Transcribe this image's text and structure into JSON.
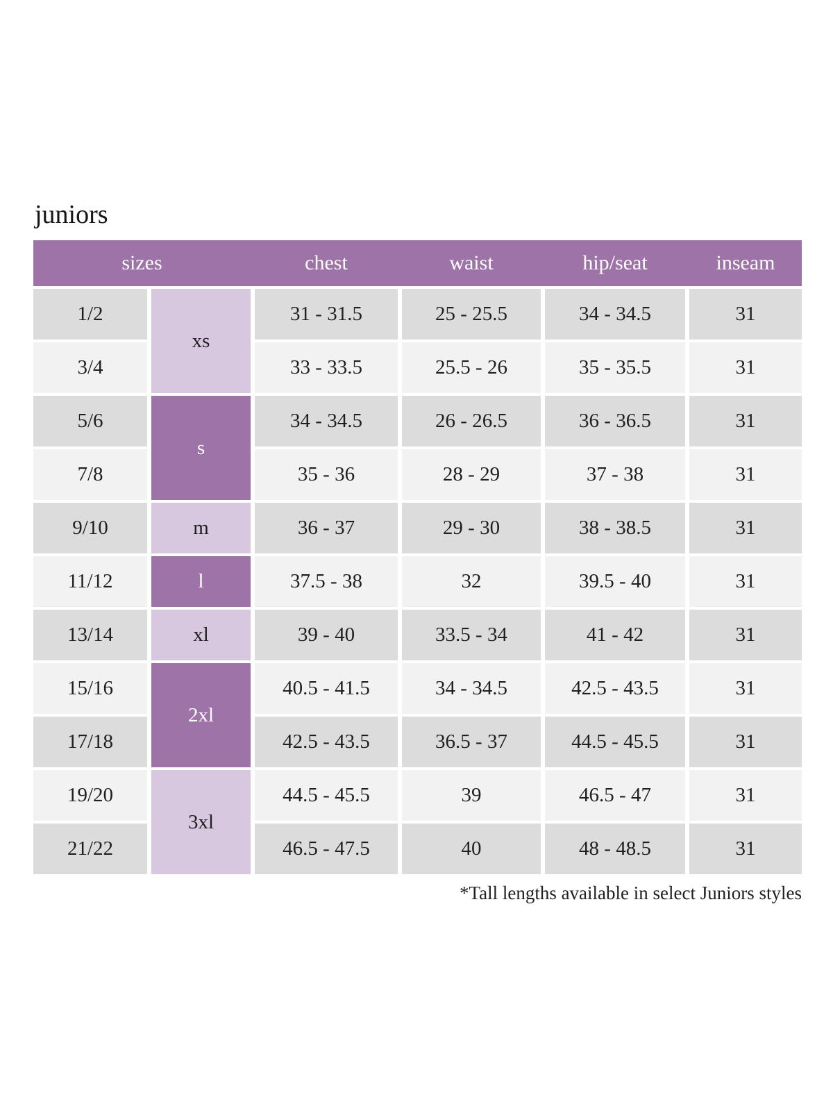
{
  "page": {
    "title": "juniors",
    "footnote": "*Tall lengths available in select Juniors styles"
  },
  "colors": {
    "header_purple": "#9e73a8",
    "group_light_purple": "#d8c8df",
    "row_gray": "#dcdcdc",
    "row_light_gray": "#f2f2f2",
    "header_text": "#ffffff",
    "body_text": "#1f1f1f"
  },
  "table": {
    "headers": {
      "sizes": "sizes",
      "chest": "chest",
      "waist": "waist",
      "hip_seat": "hip/seat",
      "inseam": "inseam"
    },
    "groups": [
      {
        "label": "xs"
      },
      {
        "label": "s"
      },
      {
        "label": "m"
      },
      {
        "label": "l"
      },
      {
        "label": "xl"
      },
      {
        "label": "2xl"
      },
      {
        "label": "3xl"
      }
    ],
    "rows": [
      {
        "size": "1/2",
        "chest": "31 - 31.5",
        "waist": "25 - 25.5",
        "hip_seat": "34 - 34.5",
        "inseam": "31"
      },
      {
        "size": "3/4",
        "chest": "33 - 33.5",
        "waist": "25.5 - 26",
        "hip_seat": "35 - 35.5",
        "inseam": "31"
      },
      {
        "size": "5/6",
        "chest": "34 - 34.5",
        "waist": "26 - 26.5",
        "hip_seat": "36 - 36.5",
        "inseam": "31"
      },
      {
        "size": "7/8",
        "chest": "35 - 36",
        "waist": "28 - 29",
        "hip_seat": "37 - 38",
        "inseam": "31"
      },
      {
        "size": "9/10",
        "chest": "36 - 37",
        "waist": "29 - 30",
        "hip_seat": "38 - 38.5",
        "inseam": "31"
      },
      {
        "size": "11/12",
        "chest": "37.5 - 38",
        "waist": "32",
        "hip_seat": "39.5 - 40",
        "inseam": "31"
      },
      {
        "size": "13/14",
        "chest": "39 - 40",
        "waist": "33.5 - 34",
        "hip_seat": "41 - 42",
        "inseam": "31"
      },
      {
        "size": "15/16",
        "chest": "40.5 - 41.5",
        "waist": "34 - 34.5",
        "hip_seat": "42.5 - 43.5",
        "inseam": "31"
      },
      {
        "size": "17/18",
        "chest": "42.5 - 43.5",
        "waist": "36.5 - 37",
        "hip_seat": "44.5 - 45.5",
        "inseam": "31"
      },
      {
        "size": "19/20",
        "chest": "44.5 - 45.5",
        "waist": "39",
        "hip_seat": "46.5 - 47",
        "inseam": "31"
      },
      {
        "size": "21/22",
        "chest": "46.5 - 47.5",
        "waist": "40",
        "hip_seat": "48 - 48.5",
        "inseam": "31"
      }
    ]
  }
}
